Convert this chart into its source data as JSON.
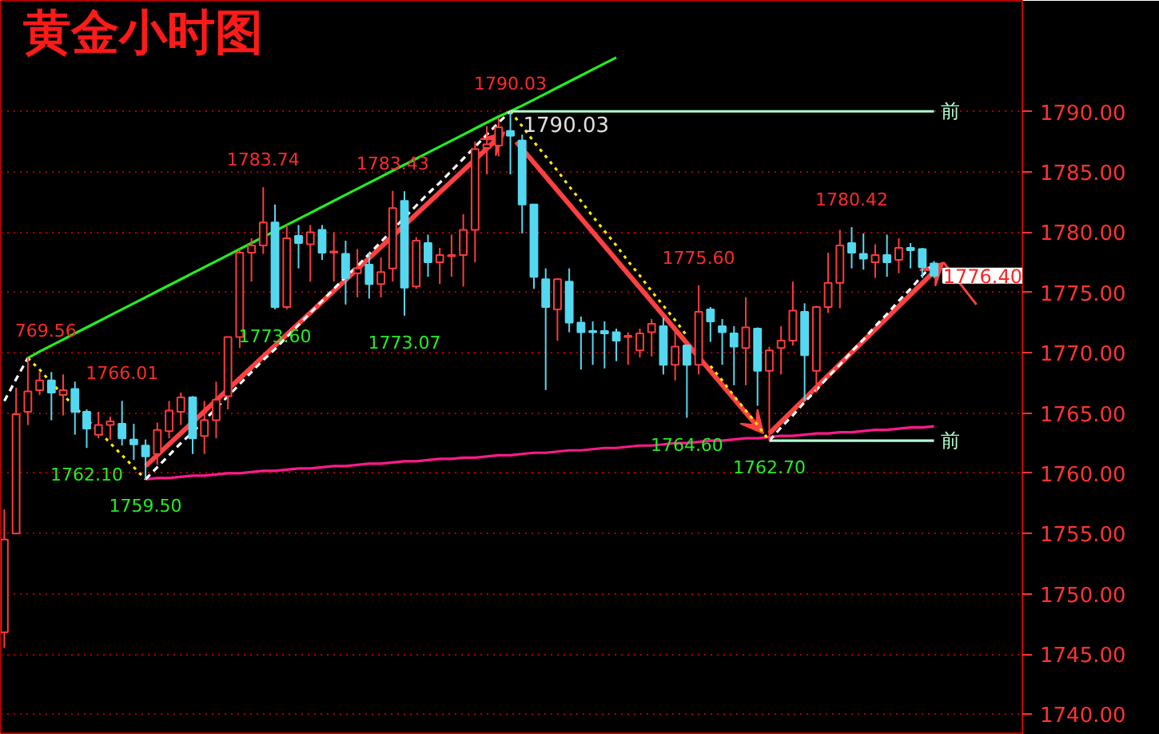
{
  "chart_data": {
    "type": "candlestick",
    "title": "黄金小时图",
    "categories": [
      null,
      null,
      null,
      null,
      null,
      null,
      null,
      null,
      null,
      null,
      null,
      null,
      null,
      null,
      null,
      null,
      null,
      null,
      null,
      null,
      null,
      null,
      null,
      null,
      null,
      null,
      null,
      null,
      null,
      null,
      null,
      null,
      null,
      null,
      null,
      null,
      null,
      null,
      null,
      null,
      null,
      null,
      null,
      null,
      null,
      null,
      null,
      null,
      null,
      null,
      null,
      null,
      null,
      null,
      null,
      null,
      null,
      null,
      null,
      null,
      null,
      null,
      null,
      null,
      null,
      null,
      null,
      null,
      null,
      null,
      null,
      null,
      null,
      null,
      null,
      null,
      null,
      null,
      null,
      null
    ],
    "ohlc": [
      [
        1746.8,
        1757.0,
        1745.5,
        1754.5
      ],
      [
        1755.0,
        1767.1,
        1755.0,
        1764.9
      ],
      [
        1765.1,
        1769.56,
        1764.0,
        1766.8
      ],
      [
        1766.9,
        1768.4,
        1766.5,
        1767.7
      ],
      [
        1767.7,
        1768.4,
        1764.4,
        1766.7
      ],
      [
        1766.5,
        1768.2,
        1764.8,
        1766.9
      ],
      [
        1767.0,
        1767.6,
        1763.2,
        1765.1
      ],
      [
        1765.1,
        1765.3,
        1762.1,
        1763.7
      ],
      [
        1763.2,
        1765.1,
        1762.9,
        1764.0
      ],
      [
        1764.0,
        1764.7,
        1762.8,
        1764.3
      ],
      [
        1764.1,
        1766.01,
        1762.3,
        1762.9
      ],
      [
        1762.8,
        1764.1,
        1761.1,
        1762.4
      ],
      [
        1762.3,
        1762.8,
        1759.5,
        1761.4
      ],
      [
        1761.6,
        1764.2,
        1760.7,
        1763.6
      ],
      [
        1763.5,
        1766.0,
        1762.9,
        1765.2
      ],
      [
        1765.1,
        1766.7,
        1764.0,
        1766.3
      ],
      [
        1766.3,
        1766.4,
        1761.6,
        1762.9
      ],
      [
        1763.1,
        1766.0,
        1761.6,
        1764.4
      ],
      [
        1764.4,
        1767.6,
        1762.9,
        1766.1
      ],
      [
        1766.4,
        1771.3,
        1765.3,
        1771.3
      ],
      [
        1771.3,
        1778.6,
        1770.4,
        1778.3
      ],
      [
        1778.3,
        1779.5,
        1775.9,
        1778.9
      ],
      [
        1778.9,
        1783.74,
        1778.2,
        1780.8
      ],
      [
        1780.8,
        1782.3,
        1773.6,
        1773.8
      ],
      [
        1773.8,
        1780.6,
        1773.6,
        1779.5
      ],
      [
        1779.7,
        1780.6,
        1777.0,
        1779.1
      ],
      [
        1779.0,
        1780.6,
        1775.9,
        1780.0
      ],
      [
        1780.2,
        1780.6,
        1777.7,
        1778.3
      ],
      [
        1778.3,
        1780.0,
        1775.9,
        1778.4
      ],
      [
        1778.2,
        1779.3,
        1774.0,
        1776.2
      ],
      [
        1776.6,
        1778.6,
        1774.6,
        1777.0
      ],
      [
        1777.3,
        1778.3,
        1774.5,
        1775.7
      ],
      [
        1775.7,
        1777.9,
        1774.6,
        1776.7
      ],
      [
        1777.0,
        1783.43,
        1775.9,
        1782.0
      ],
      [
        1782.6,
        1783.4,
        1773.07,
        1775.4
      ],
      [
        1775.5,
        1779.6,
        1775.3,
        1779.3
      ],
      [
        1779.1,
        1779.8,
        1776.3,
        1777.5
      ],
      [
        1777.5,
        1778.7,
        1775.7,
        1778.1
      ],
      [
        1778.0,
        1779.8,
        1776.3,
        1778.1
      ],
      [
        1778.1,
        1781.5,
        1775.5,
        1780.2
      ],
      [
        1780.2,
        1787.5,
        1777.5,
        1786.9
      ],
      [
        1787.0,
        1788.8,
        1784.8,
        1787.3
      ],
      [
        1787.2,
        1789.5,
        1786.3,
        1788.7
      ],
      [
        1788.4,
        1790.03,
        1784.8,
        1788.0
      ],
      [
        1787.6,
        1788.1,
        1779.9,
        1782.3
      ],
      [
        1782.3,
        1782.3,
        1775.3,
        1776.3
      ],
      [
        1776.1,
        1777.0,
        1766.9,
        1773.8
      ],
      [
        1773.6,
        1776.2,
        1771.0,
        1776.1
      ],
      [
        1775.9,
        1777.0,
        1771.7,
        1772.5
      ],
      [
        1772.5,
        1773.0,
        1768.6,
        1771.7
      ],
      [
        1771.8,
        1772.6,
        1769.0,
        1771.7
      ],
      [
        1771.8,
        1772.6,
        1768.7,
        1771.6
      ],
      [
        1771.7,
        1772.0,
        1769.3,
        1771.0
      ],
      [
        1771.3,
        1771.7,
        1769.0,
        1771.4
      ],
      [
        1770.2,
        1772.0,
        1769.6,
        1771.6
      ],
      [
        1771.7,
        1772.8,
        1769.7,
        1772.4
      ],
      [
        1772.2,
        1772.9,
        1768.2,
        1769.0
      ],
      [
        1769.0,
        1772.2,
        1767.7,
        1770.5
      ],
      [
        1770.6,
        1770.6,
        1764.6,
        1769.0
      ],
      [
        1769.0,
        1775.6,
        1768.2,
        1773.4
      ],
      [
        1773.6,
        1773.8,
        1770.9,
        1772.6
      ],
      [
        1772.2,
        1772.8,
        1769.0,
        1771.7
      ],
      [
        1771.6,
        1772.2,
        1767.3,
        1770.5
      ],
      [
        1770.4,
        1774.6,
        1767.3,
        1772.1
      ],
      [
        1772.0,
        1772.1,
        1765.6,
        1768.5
      ],
      [
        1768.5,
        1770.5,
        1762.7,
        1770.2
      ],
      [
        1770.4,
        1772.2,
        1768.2,
        1771.0
      ],
      [
        1771.0,
        1775.9,
        1770.6,
        1773.5
      ],
      [
        1773.4,
        1774.1,
        1766.0,
        1769.8
      ],
      [
        1768.5,
        1773.9,
        1766.7,
        1773.8
      ],
      [
        1773.8,
        1778.3,
        1773.3,
        1775.8
      ],
      [
        1775.8,
        1780.2,
        1773.7,
        1778.9
      ],
      [
        1779.1,
        1780.42,
        1777.0,
        1778.3
      ],
      [
        1778.2,
        1779.9,
        1776.9,
        1777.8
      ],
      [
        1777.5,
        1779.0,
        1776.2,
        1778.1
      ],
      [
        1778.1,
        1779.8,
        1776.3,
        1777.5
      ],
      [
        1777.7,
        1779.5,
        1776.6,
        1778.7
      ],
      [
        1778.7,
        1779.1,
        1777.0,
        1778.5
      ],
      [
        1778.6,
        1778.7,
        1776.2,
        1777.1
      ],
      [
        1777.4,
        1777.6,
        1776.2,
        1776.4
      ]
    ],
    "colors": [
      "#ff3b3b",
      "#ff3b3b",
      "#ff3b3b",
      "#ff3b3b",
      "#54d8f0",
      "#ff3b3b",
      "#54d8f0",
      "#54d8f0",
      "#ff3b3b",
      "#ff3b3b",
      "#54d8f0",
      "#54d8f0",
      "#54d8f0",
      "#ff3b3b",
      "#ff3b3b",
      "#ff3b3b",
      "#54d8f0",
      "#ff3b3b",
      "#ff3b3b",
      "#ff3b3b",
      "#ff3b3b",
      "#ff3b3b",
      "#ff3b3b",
      "#54d8f0",
      "#ff3b3b",
      "#54d8f0",
      "#ff3b3b",
      "#54d8f0",
      "#ff3b3b",
      "#54d8f0",
      "#ff3b3b",
      "#54d8f0",
      "#ff3b3b",
      "#ff3b3b",
      "#54d8f0",
      "#ff3b3b",
      "#54d8f0",
      "#ff3b3b",
      "#ff3b3b",
      "#ff3b3b",
      "#ff3b3b",
      "#ff3b3b",
      "#ff3b3b",
      "#54d8f0",
      "#54d8f0",
      "#54d8f0",
      "#54d8f0",
      "#ff3b3b",
      "#54d8f0",
      "#54d8f0",
      "#54d8f0",
      "#54d8f0",
      "#54d8f0",
      "#ff3b3b",
      "#ff3b3b",
      "#ff3b3b",
      "#54d8f0",
      "#ff3b3b",
      "#54d8f0",
      "#ff3b3b",
      "#54d8f0",
      "#54d8f0",
      "#54d8f0",
      "#ff3b3b",
      "#54d8f0",
      "#ff3b3b",
      "#ff3b3b",
      "#ff3b3b",
      "#54d8f0",
      "#ff3b3b",
      "#ff3b3b",
      "#ff3b3b",
      "#54d8f0",
      "#54d8f0",
      "#ff3b3b",
      "#54d8f0",
      "#ff3b3b",
      "#54d8f0",
      "#54d8f0",
      "#54d8f0"
    ],
    "series": [
      {
        "type": "line",
        "color": "#22ee22",
        "values": [
          null,
          null,
          1769.56,
          1770.1,
          1770.6,
          1771.1,
          1771.6,
          1772.1,
          1772.6,
          1773.1,
          1773.6,
          1774.1,
          1774.6,
          1775.1,
          1775.6,
          1776.1,
          1776.6,
          1777.1,
          1777.6,
          1778.1,
          1778.6,
          1779.1,
          1779.6,
          1780.1,
          1780.6,
          1781.1,
          1781.6,
          1782.1,
          1782.6,
          1783.1,
          1783.6,
          1784.1,
          1784.6,
          1785.1,
          1785.6,
          1786.1,
          1786.6,
          1787.1,
          1787.6,
          1788.1,
          1788.6,
          1789.1,
          1789.6,
          1790.03,
          1790.5,
          1791.0,
          1791.5,
          1792.0,
          1792.5,
          1793.0,
          1793.5,
          1794.0,
          1794.5,
          null,
          null,
          null,
          null,
          null,
          null,
          null,
          null,
          null,
          null,
          null,
          null,
          null,
          null,
          null,
          null,
          null,
          null,
          null,
          null,
          null,
          null,
          null,
          null,
          null,
          null,
          null
        ]
      },
      {
        "type": "line",
        "color": "#ff1a8c",
        "values": [
          null,
          null,
          null,
          null,
          null,
          null,
          null,
          null,
          null,
          null,
          null,
          null,
          1759.5,
          1759.6,
          1759.6,
          1759.7,
          1759.8,
          1759.8,
          1759.9,
          1760.0,
          1760.0,
          1760.1,
          1760.2,
          1760.2,
          1760.3,
          1760.4,
          1760.4,
          1760.5,
          1760.6,
          1760.6,
          1760.7,
          1760.8,
          1760.8,
          1760.9,
          1761.0,
          1761.0,
          1761.1,
          1761.2,
          1761.2,
          1761.3,
          1761.3,
          1761.4,
          1761.5,
          1761.5,
          1761.6,
          1761.7,
          1761.7,
          1761.8,
          1761.9,
          1761.9,
          1762.0,
          1762.1,
          1762.1,
          1762.2,
          1762.3,
          1762.3,
          1762.4,
          1762.5,
          1762.5,
          1762.6,
          1762.7,
          1762.7,
          1762.8,
          1762.9,
          1762.9,
          1763.0,
          1763.1,
          1763.1,
          1763.2,
          1763.3,
          1763.3,
          1763.4,
          1763.4,
          1763.5,
          1763.6,
          1763.6,
          1763.7,
          1763.8,
          1763.8,
          1763.9
        ]
      },
      {
        "type": "line",
        "name": "前",
        "color": "#b0ffd0",
        "values": [
          null,
          null,
          null,
          null,
          null,
          null,
          null,
          null,
          null,
          null,
          null,
          null,
          null,
          null,
          null,
          null,
          null,
          null,
          null,
          null,
          null,
          null,
          null,
          null,
          null,
          null,
          null,
          null,
          null,
          null,
          null,
          null,
          null,
          null,
          null,
          null,
          null,
          null,
          null,
          null,
          null,
          null,
          null,
          1790.03,
          1790.03,
          1790.03,
          1790.03,
          1790.03,
          1790.03,
          1790.03,
          1790.03,
          1790.03,
          1790.03,
          1790.03,
          1790.03,
          1790.03,
          1790.03,
          1790.03,
          1790.03,
          1790.03,
          1790.03,
          1790.03,
          1790.03,
          1790.03,
          1790.03,
          1790.03,
          1790.03,
          1790.03,
          1790.03,
          1790.03,
          1790.03,
          1790.03,
          1790.03,
          1790.03,
          1790.03,
          1790.03,
          1790.03,
          1790.03,
          1790.03,
          1790.03
        ],
        "value_labels": [
          null,
          null,
          null,
          null,
          null,
          null,
          null,
          null,
          null,
          null,
          null,
          null,
          null,
          null,
          null,
          null,
          null,
          null,
          null,
          null,
          null,
          null,
          null,
          null,
          null,
          null,
          null,
          null,
          null,
          null,
          null,
          null,
          null,
          null,
          null,
          null,
          null,
          null,
          null,
          null,
          null,
          null,
          null,
          "1790.03",
          null,
          null,
          null,
          null,
          null,
          null,
          null,
          null,
          null,
          null,
          null,
          null,
          null,
          null,
          null,
          null,
          null,
          null,
          null,
          null,
          null,
          null,
          null,
          null,
          null,
          null,
          null,
          null,
          null,
          null,
          null,
          null,
          null,
          null,
          null,
          null
        ]
      },
      {
        "type": "line",
        "name": "前",
        "color": "#b0ffd0",
        "values": [
          null,
          null,
          null,
          null,
          null,
          null,
          null,
          null,
          null,
          null,
          null,
          null,
          null,
          null,
          null,
          null,
          null,
          null,
          null,
          null,
          null,
          null,
          null,
          null,
          null,
          null,
          null,
          null,
          null,
          null,
          null,
          null,
          null,
          null,
          null,
          null,
          null,
          null,
          null,
          null,
          null,
          null,
          null,
          null,
          null,
          null,
          null,
          null,
          null,
          null,
          null,
          null,
          null,
          null,
          null,
          null,
          null,
          null,
          null,
          null,
          null,
          null,
          null,
          null,
          null,
          1762.7,
          1762.7,
          1762.7,
          1762.7,
          1762.7,
          1762.7,
          1762.7,
          1762.7,
          1762.7,
          1762.7,
          1762.7,
          1762.7,
          1762.7,
          1762.7,
          1762.7
        ]
      },
      {
        "type": "line",
        "color": "#ffffff",
        "line_style": "dashed",
        "values": [
          1766.0,
          1767.8,
          1769.56,
          null,
          null,
          null,
          null,
          null,
          null,
          null,
          null,
          null,
          null,
          null,
          null,
          null,
          null,
          null,
          null,
          null,
          null,
          null,
          null,
          null,
          null,
          null,
          null,
          null,
          null,
          null,
          null,
          null,
          null,
          null,
          null,
          null,
          null,
          null,
          null,
          null,
          null,
          null,
          null,
          null,
          null,
          null,
          null,
          null,
          null,
          null,
          null,
          null,
          null,
          null,
          null,
          null,
          null,
          null,
          null,
          null,
          null,
          null,
          null,
          null,
          null,
          null,
          null,
          null,
          null,
          null,
          null,
          null,
          null,
          null,
          null,
          null,
          null,
          null,
          null,
          null
        ]
      },
      {
        "type": "line",
        "color": "#ffee00",
        "line_style": "dotted",
        "values": [
          null,
          null,
          1769.56,
          1768.6,
          1767.5,
          1766.5,
          1765.5,
          1764.5,
          1763.5,
          1762.5,
          1761.5,
          1760.5,
          1759.5,
          null,
          null,
          null,
          null,
          null,
          null,
          null,
          null,
          null,
          null,
          null,
          null,
          null,
          null,
          null,
          null,
          null,
          null,
          null,
          null,
          null,
          null,
          null,
          null,
          null,
          null,
          null,
          null,
          null,
          null,
          null,
          null,
          null,
          null,
          null,
          null,
          null,
          null,
          null,
          null,
          null,
          null,
          null,
          null,
          null,
          null,
          null,
          null,
          null,
          null,
          null,
          null,
          null,
          null,
          null,
          null,
          null,
          null,
          null,
          null,
          null,
          null,
          null,
          null,
          null,
          null,
          null
        ]
      },
      {
        "type": "line",
        "color": "#ffffff",
        "line_style": "dashed",
        "values": [
          null,
          null,
          null,
          null,
          null,
          null,
          null,
          null,
          null,
          null,
          null,
          null,
          1759.5,
          1760.5,
          1761.5,
          1762.5,
          1763.4,
          1764.4,
          1765.4,
          1766.4,
          1767.4,
          1768.4,
          1769.4,
          1770.3,
          1771.3,
          1772.3,
          1773.3,
          1774.3,
          1775.3,
          1776.3,
          1777.2,
          1778.2,
          1779.2,
          1780.2,
          1781.2,
          1782.2,
          1783.2,
          1784.1,
          1785.1,
          1786.1,
          1787.1,
          1788.1,
          1789.1,
          1790.03,
          null,
          null,
          null,
          null,
          null,
          null,
          null,
          null,
          null,
          null,
          null,
          null,
          null,
          null,
          null,
          null,
          null,
          null,
          null,
          null,
          null,
          null,
          null,
          null,
          null,
          null,
          null,
          null,
          null,
          null,
          null,
          null,
          null,
          null,
          null,
          null
        ]
      },
      {
        "type": "line",
        "color": "#ffee00",
        "line_style": "dotted",
        "values": [
          null,
          null,
          null,
          null,
          null,
          null,
          null,
          null,
          null,
          null,
          null,
          null,
          null,
          null,
          null,
          null,
          null,
          null,
          null,
          null,
          null,
          null,
          null,
          null,
          null,
          null,
          null,
          null,
          null,
          null,
          null,
          null,
          null,
          null,
          null,
          null,
          null,
          null,
          null,
          null,
          null,
          null,
          null,
          1790.03,
          1788.8,
          1787.5,
          1786.3,
          1785.1,
          1783.8,
          1782.6,
          1781.3,
          1780.1,
          1778.9,
          1777.6,
          1776.4,
          1775.1,
          1773.9,
          1772.7,
          1771.4,
          null,
          1768.9,
          1767.7,
          1766.4,
          1765.2,
          1764.0,
          1762.7,
          null,
          null,
          null,
          null,
          null,
          null,
          null,
          null,
          null,
          null,
          null,
          null,
          null,
          null
        ]
      },
      {
        "type": "line",
        "color": "#ffffff",
        "line_style": "dashed",
        "values": [
          null,
          null,
          null,
          null,
          null,
          null,
          null,
          null,
          null,
          null,
          null,
          null,
          null,
          null,
          null,
          null,
          null,
          null,
          null,
          null,
          null,
          null,
          null,
          null,
          null,
          null,
          null,
          null,
          null,
          null,
          null,
          null,
          null,
          null,
          null,
          null,
          null,
          null,
          null,
          null,
          null,
          null,
          null,
          null,
          null,
          null,
          null,
          null,
          null,
          null,
          null,
          null,
          null,
          null,
          null,
          null,
          null,
          null,
          null,
          null,
          null,
          null,
          null,
          null,
          null,
          1762.7,
          1763.8,
          1764.8,
          1765.9,
          1766.9,
          1768.0,
          1769.0,
          1770.1,
          1771.1,
          1772.2,
          1773.2,
          1774.3,
          1775.3,
          1776.4,
          1777.4
        ]
      }
    ],
    "annotations": [
      {
        "text": "769.56",
        "y": 1769.56
      },
      {
        "text": "1766.01",
        "y": 1766.01
      },
      {
        "text": "1762.10",
        "y": 1762.1
      },
      {
        "text": "1759.50",
        "y": 1759.5
      },
      {
        "text": "1783.74",
        "y": 1783.74
      },
      {
        "text": "1773.60",
        "y": 1773.6
      },
      {
        "text": "1783.43",
        "y": 1783.43
      },
      {
        "text": "1773.07",
        "y": 1773.07
      },
      {
        "text": "1790.03",
        "y": 1790.03
      },
      {
        "text": "1775.60",
        "y": 1775.6
      },
      {
        "text": "1764.60",
        "y": 1764.6
      },
      {
        "text": "1762.70",
        "y": 1762.7
      },
      {
        "text": "1780.42",
        "y": 1780.42
      },
      "1776.40"
    ],
    "ylim": [
      1738.3,
      1799.2
    ],
    "yticks": [
      {
        "value": 1740,
        "label": "1740.00"
      },
      {
        "value": 1745,
        "label": "1745.00"
      },
      {
        "value": 1750,
        "label": "1750.00"
      },
      {
        "value": 1755,
        "label": "1755.00"
      },
      {
        "value": 1760,
        "label": "1760.00"
      },
      {
        "value": 1765,
        "label": "1765.00"
      },
      {
        "value": 1770,
        "label": "1770.00"
      },
      {
        "value": 1775,
        "label": "1775.00"
      },
      {
        "value": 1780,
        "label": "1780.00"
      },
      {
        "value": 1785,
        "label": "1785.00"
      },
      {
        "value": 1790,
        "label": "1790.00"
      }
    ],
    "grid": "y",
    "marker": "none"
  }
}
